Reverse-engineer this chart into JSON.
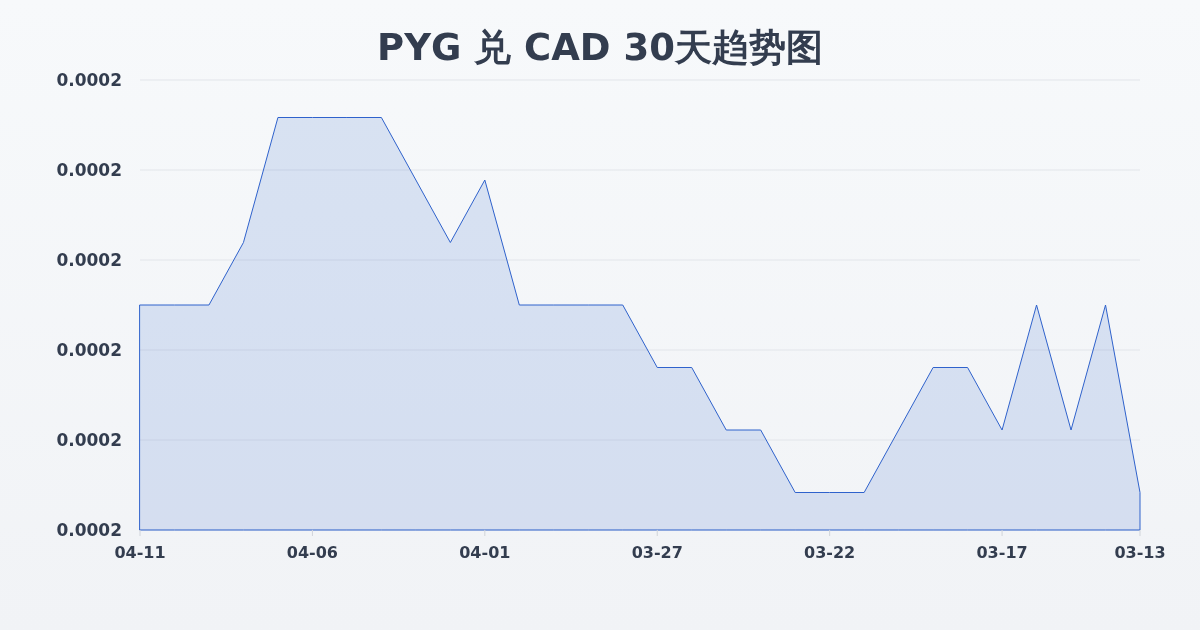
{
  "chart_data": {
    "type": "area",
    "title": "PYG 兑 CAD 30天趋势图",
    "categories": [
      "04-11",
      null,
      null,
      null,
      null,
      "04-06",
      null,
      null,
      null,
      null,
      "04-01",
      null,
      null,
      null,
      null,
      "03-27",
      null,
      null,
      null,
      null,
      "03-22",
      null,
      null,
      null,
      null,
      "03-17",
      null,
      null,
      null,
      "03-13"
    ],
    "values": [
      0.000178,
      0.000178,
      0.000178,
      0.000179,
      0.000181,
      0.000181,
      0.000181,
      0.000181,
      0.00018,
      0.000179,
      0.00018,
      0.000178,
      0.000178,
      0.000178,
      0.000178,
      0.000177,
      0.000177,
      0.000176,
      0.000176,
      0.000175,
      0.000175,
      0.000175,
      0.000176,
      0.000177,
      0.000177,
      0.000176,
      0.000178,
      0.000176,
      0.000178,
      0.000175
    ],
    "color": "#2f62cc",
    "ylim": [
      0.0001744,
      0.0001816
    ],
    "yticks": [
      {
        "value": 0.0001744,
        "label": "0.0002"
      },
      {
        "value": 0.00017584,
        "label": "0.0002"
      },
      {
        "value": 0.00017728,
        "label": "0.0002"
      },
      {
        "value": 0.00017872,
        "label": "0.0002"
      },
      {
        "value": 0.00018016,
        "label": "0.0002"
      },
      {
        "value": 0.0001816,
        "label": "0.0002"
      }
    ],
    "grid": "y"
  }
}
